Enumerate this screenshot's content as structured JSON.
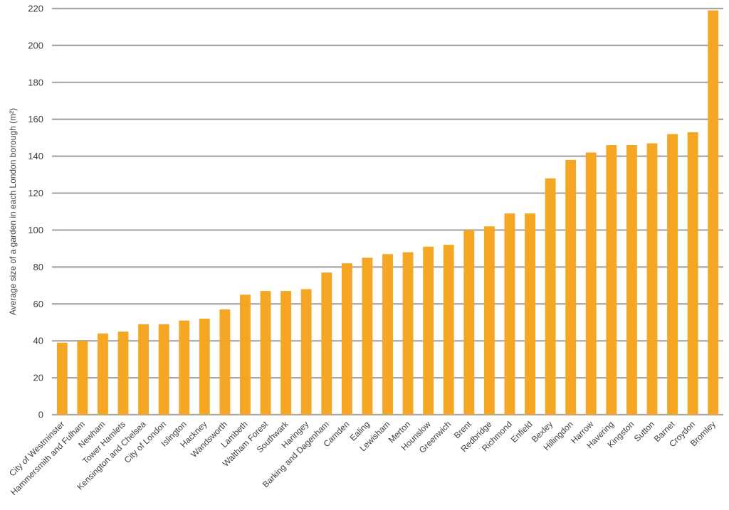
{
  "chart_data": {
    "type": "bar",
    "ylabel": "Average size of a garden in each London borough (m²)",
    "ylim": [
      0,
      220
    ],
    "yticks": [
      0,
      20,
      40,
      60,
      80,
      100,
      120,
      140,
      160,
      180,
      200,
      220
    ],
    "grid": true,
    "bar_color": "#F5A623",
    "grid_color": "#A6A6A6",
    "categories": [
      "City of Westminster",
      "Hammersmith and Fulham",
      "Newham",
      "Tower Hamlets",
      "Kensington and Chelsea",
      "City of London",
      "Islington",
      "Hackney",
      "Wandsworth",
      "Lambeth",
      "Waltham Forest",
      "Southwark",
      "Haringey",
      "Barking and Dagenham",
      "Camden",
      "Ealing",
      "Lewisham",
      "Merton",
      "Hounslow",
      "Greenwich",
      "Brent",
      "Redbridge",
      "Richmond",
      "Enfield",
      "Bexley",
      "Hillingdon",
      "Harrow",
      "Havering",
      "Kingston",
      "Sutton",
      "Barnet",
      "Croydon",
      "Bromley"
    ],
    "values": [
      39,
      40,
      44,
      45,
      49,
      49,
      51,
      52,
      57,
      65,
      67,
      67,
      68,
      77,
      82,
      85,
      87,
      88,
      91,
      92,
      100,
      102,
      109,
      109,
      128,
      138,
      142,
      146,
      146,
      147,
      152,
      153,
      219
    ]
  }
}
